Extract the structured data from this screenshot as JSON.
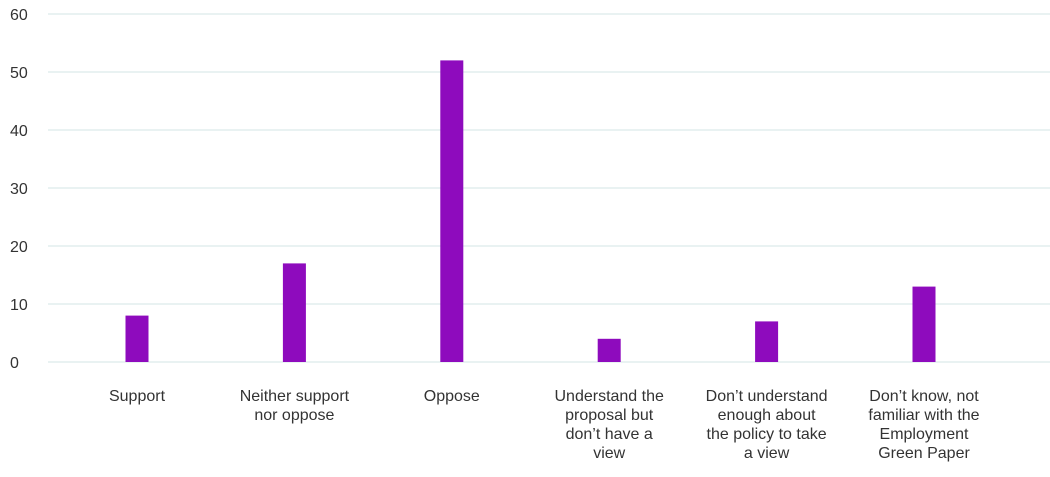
{
  "chart_data": {
    "type": "bar",
    "categories": [
      [
        "Support"
      ],
      [
        "Neither support",
        "nor oppose"
      ],
      [
        "Oppose"
      ],
      [
        "Understand the",
        "proposal but",
        "don’t have a",
        "view"
      ],
      [
        "Don’t understand",
        "enough about",
        "the policy to take",
        "a view"
      ],
      [
        "Don’t know, not",
        "familiar with the",
        "Employment",
        "Green Paper"
      ]
    ],
    "values": [
      8,
      17,
      52,
      4,
      7,
      13
    ],
    "yticks": [
      0,
      10,
      20,
      30,
      40,
      50,
      60
    ],
    "ylim": [
      0,
      60
    ],
    "grid": true,
    "bar_color": "#8e0bbd",
    "grid_color": "#d3e4e4"
  }
}
